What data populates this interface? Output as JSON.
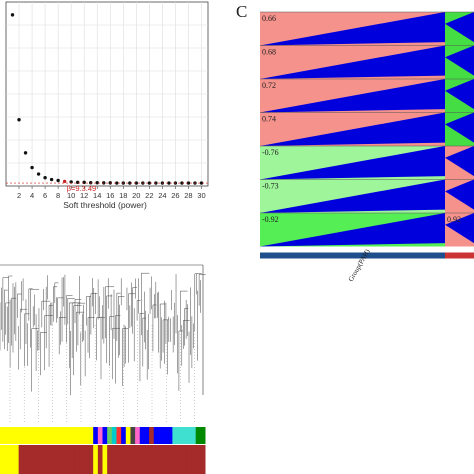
{
  "chart_data": [
    {
      "type": "scatter",
      "xlabel": "Soft threshold (power)",
      "ylabel": "",
      "xlim": [
        0,
        31
      ],
      "ylim": [
        0,
        1.0
      ],
      "x_ticks": [
        2,
        4,
        6,
        8,
        10,
        12,
        14,
        16,
        18,
        20,
        22,
        24,
        26,
        28,
        30
      ],
      "grid": true,
      "points": [
        {
          "x": 1,
          "y": 0.93
        },
        {
          "x": 2,
          "y": 0.36
        },
        {
          "x": 3,
          "y": 0.18
        },
        {
          "x": 4,
          "y": 0.1
        },
        {
          "x": 5,
          "y": 0.065
        },
        {
          "x": 6,
          "y": 0.045
        },
        {
          "x": 7,
          "y": 0.035
        },
        {
          "x": 8,
          "y": 0.03
        },
        {
          "x": 9,
          "y": 0.025
        },
        {
          "x": 10,
          "y": 0.022
        },
        {
          "x": 11,
          "y": 0.02
        },
        {
          "x": 12,
          "y": 0.02
        },
        {
          "x": 13,
          "y": 0.018
        },
        {
          "x": 14,
          "y": 0.018
        },
        {
          "x": 15,
          "y": 0.017
        },
        {
          "x": 16,
          "y": 0.017
        },
        {
          "x": 17,
          "y": 0.016
        },
        {
          "x": 18,
          "y": 0.016
        },
        {
          "x": 19,
          "y": 0.016
        },
        {
          "x": 20,
          "y": 0.016
        },
        {
          "x": 21,
          "y": 0.016
        },
        {
          "x": 22,
          "y": 0.016
        },
        {
          "x": 23,
          "y": 0.016
        },
        {
          "x": 24,
          "y": 0.016
        },
        {
          "x": 25,
          "y": 0.016
        },
        {
          "x": 26,
          "y": 0.016
        },
        {
          "x": 27,
          "y": 0.016
        },
        {
          "x": 28,
          "y": 0.016
        },
        {
          "x": 29,
          "y": 0.016
        },
        {
          "x": 30,
          "y": 0.016
        }
      ],
      "highlight": {
        "x": 9,
        "label": "β=9.3.49",
        "color": "#cc2222"
      },
      "marker_color": "#111111"
    },
    {
      "type": "heatmap",
      "panel_label": "C",
      "column_label": "Group(PAH)",
      "cells": [
        {
          "value": "0.66",
          "color": "#f5928c",
          "side_value": "",
          "side_color": "#44dd44"
        },
        {
          "value": "0.68",
          "color": "#f5928c",
          "side_value": "",
          "side_color": "#44dd44"
        },
        {
          "value": "0.72",
          "color": "#f5928c",
          "side_value": "",
          "side_color": "#44dd44"
        },
        {
          "value": "0.74",
          "color": "#f5928c",
          "side_value": "",
          "side_color": "#44dd44"
        },
        {
          "value": "-0.76",
          "color": "#9ef59a",
          "side_value": "",
          "side_color": "#f5928c"
        },
        {
          "value": "-0.73",
          "color": "#9ef59a",
          "side_value": "",
          "side_color": "#f5928c"
        },
        {
          "value": "-0.92",
          "color": "#55ee55",
          "side_value": "0.92",
          "side_color": "#f5928c"
        }
      ],
      "triangle_color": "#0000dd",
      "bottom_bar_colors": [
        "#1f4e8c",
        "#cc3333"
      ]
    },
    {
      "type": "dendrogram",
      "module_colors": [
        "#ffff00",
        "#ffff00",
        "#ffff00",
        "#ffff00",
        "#ffff00",
        "#ffff00",
        "#ffff00",
        "#ffff00",
        "#ffff00",
        "#ffff00",
        "#ffff00",
        "#ffff00",
        "#ffff00",
        "#ffff00",
        "#ffff00",
        "#ffff00",
        "#ffff00",
        "#ffff00",
        "#ffff00",
        "#ffff00",
        "#0000ff",
        "#ff66cc",
        "#0000ff",
        "#66cc66",
        "#00cccc",
        "#ff3333",
        "#0000ff",
        "#ffff00",
        "#444444",
        "#ff66cc",
        "#0000ff",
        "#0000ff",
        "#a52a2a",
        "#0000ff",
        "#0000ff",
        "#0000ff",
        "#0000ff",
        "#40e0d0",
        "#40e0d0",
        "#40e0d0",
        "#40e0d0",
        "#40e0d0",
        "#008800",
        "#008800"
      ],
      "trait_colors": [
        "#ffff00",
        "#ffff00",
        "#ffff00",
        "#ffff00",
        "#a52a2a",
        "#a52a2a",
        "#a52a2a",
        "#a52a2a",
        "#a52a2a",
        "#a52a2a",
        "#a52a2a",
        "#a52a2a",
        "#a52a2a",
        "#a52a2a",
        "#a52a2a",
        "#a52a2a",
        "#a52a2a",
        "#a52a2a",
        "#a52a2a",
        "#a52a2a",
        "#ffff00",
        "#a52a2a",
        "#ffff00",
        "#a52a2a",
        "#a52a2a",
        "#a52a2a",
        "#a52a2a",
        "#a52a2a",
        "#a52a2a",
        "#a52a2a",
        "#a52a2a",
        "#a52a2a",
        "#a52a2a",
        "#a52a2a",
        "#a52a2a",
        "#a52a2a",
        "#a52a2a",
        "#a52a2a",
        "#a52a2a",
        "#a52a2a",
        "#a52a2a",
        "#a52a2a",
        "#a52a2a",
        "#a52a2a"
      ]
    }
  ]
}
